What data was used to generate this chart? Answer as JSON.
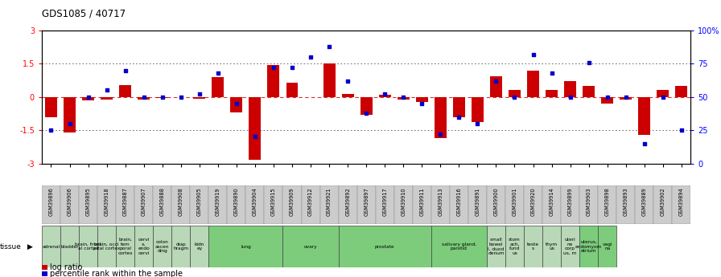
{
  "title": "GDS1085 / 40717",
  "samples": [
    "GSM39896",
    "GSM39906",
    "GSM39895",
    "GSM39918",
    "GSM39887",
    "GSM39907",
    "GSM39888",
    "GSM39908",
    "GSM39905",
    "GSM39919",
    "GSM39890",
    "GSM39904",
    "GSM39915",
    "GSM39909",
    "GSM39912",
    "GSM39921",
    "GSM39892",
    "GSM39897",
    "GSM39917",
    "GSM39910",
    "GSM39911",
    "GSM39913",
    "GSM39916",
    "GSM39891",
    "GSM39900",
    "GSM39901",
    "GSM39920",
    "GSM39914",
    "GSM39899",
    "GSM39903",
    "GSM39898",
    "GSM39893",
    "GSM39889",
    "GSM39902",
    "GSM39894"
  ],
  "log_ratio": [
    -0.9,
    -1.6,
    -0.15,
    -0.12,
    0.55,
    -0.1,
    -0.05,
    0.0,
    -0.08,
    0.9,
    -0.7,
    -2.85,
    1.45,
    0.65,
    0.0,
    1.5,
    0.15,
    -0.8,
    0.1,
    -0.1,
    -0.22,
    -1.85,
    -0.9,
    -1.15,
    0.95,
    0.3,
    1.2,
    0.3,
    0.7,
    0.5,
    -0.3,
    -0.1,
    -1.7,
    0.3,
    0.5
  ],
  "percentile_rank": [
    25,
    30,
    50,
    55,
    70,
    50,
    50,
    50,
    52,
    68,
    45,
    20,
    72,
    72,
    80,
    88,
    62,
    38,
    52,
    50,
    45,
    22,
    35,
    30,
    62,
    50,
    82,
    68,
    50,
    76,
    50,
    50,
    15,
    50,
    25
  ],
  "tissue_groups": [
    {
      "label": "adrenal",
      "start": 0,
      "end": 1,
      "color": "#b8d8b8"
    },
    {
      "label": "bladder",
      "start": 1,
      "end": 2,
      "color": "#b8d8b8"
    },
    {
      "label": "brain, front\nal cortex",
      "start": 2,
      "end": 3,
      "color": "#b8d8b8"
    },
    {
      "label": "brain, occi\npital cortex",
      "start": 3,
      "end": 4,
      "color": "#b8d8b8"
    },
    {
      "label": "brain,\ntem\nporal\ncortex",
      "start": 4,
      "end": 5,
      "color": "#b8d8b8"
    },
    {
      "label": "cervi\nx,\nendo\ncervi",
      "start": 5,
      "end": 6,
      "color": "#b8d8b8"
    },
    {
      "label": "colon\nascen\nding",
      "start": 6,
      "end": 7,
      "color": "#b8d8b8"
    },
    {
      "label": "diap\nhragm",
      "start": 7,
      "end": 8,
      "color": "#b8d8b8"
    },
    {
      "label": "kidn\ney",
      "start": 8,
      "end": 9,
      "color": "#b8d8b8"
    },
    {
      "label": "lung",
      "start": 9,
      "end": 13,
      "color": "#7ccc7c"
    },
    {
      "label": "ovary",
      "start": 13,
      "end": 16,
      "color": "#7ccc7c"
    },
    {
      "label": "prostate",
      "start": 16,
      "end": 21,
      "color": "#7ccc7c"
    },
    {
      "label": "salivary gland,\nparotid",
      "start": 21,
      "end": 24,
      "color": "#7ccc7c"
    },
    {
      "label": "small\nbowel\nl, duod\ndenum",
      "start": 24,
      "end": 25,
      "color": "#b8d8b8"
    },
    {
      "label": "stom\nach,\nfund\nus",
      "start": 25,
      "end": 26,
      "color": "#b8d8b8"
    },
    {
      "label": "teste\ns",
      "start": 26,
      "end": 27,
      "color": "#b8d8b8"
    },
    {
      "label": "thym\nus",
      "start": 27,
      "end": 28,
      "color": "#b8d8b8"
    },
    {
      "label": "uteri\nne\ncorp\nus, m",
      "start": 28,
      "end": 29,
      "color": "#b8d8b8"
    },
    {
      "label": "uterus,\nendomyom\netrium",
      "start": 29,
      "end": 30,
      "color": "#7ccc7c"
    },
    {
      "label": "vagi\nna",
      "start": 30,
      "end": 31,
      "color": "#7ccc7c"
    }
  ],
  "ylim_left": [
    -3,
    3
  ],
  "ylim_right": [
    0,
    100
  ],
  "yticks_left": [
    -3,
    -1.5,
    0,
    1.5,
    3
  ],
  "yticks_right": [
    0,
    25,
    50,
    75,
    100
  ],
  "yticklabels_right": [
    "0",
    "25",
    "50",
    "75",
    "100%"
  ],
  "bar_color": "#cc0000",
  "dot_color": "#0000cc",
  "background_color": "#ffffff",
  "zero_line_color": "#cc0000",
  "chart_bg": "#ffffff",
  "label_area_bg": "#cccccc"
}
